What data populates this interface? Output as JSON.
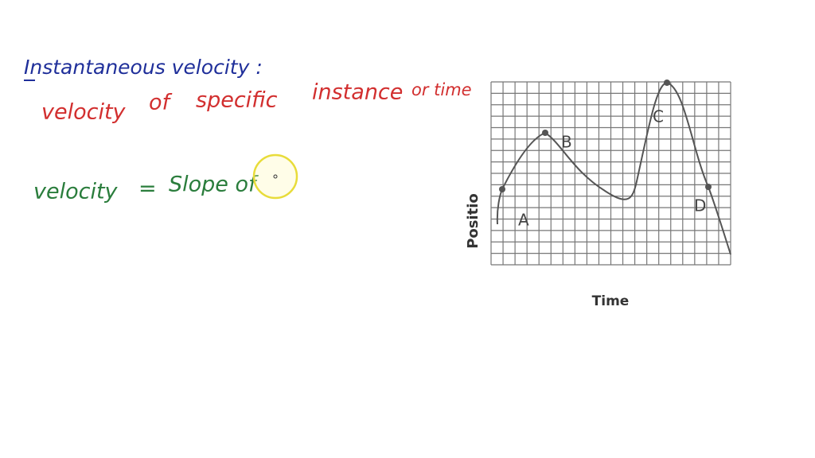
{
  "notes": {
    "heading": "Instantaneous velocity :",
    "definition_words": [
      "velocity",
      "of",
      "specific",
      "instance",
      "or time"
    ],
    "formula_lhs": "velocity",
    "formula_eq": "=",
    "formula_rhs": "Slope of"
  },
  "graph": {
    "point_labels": [
      "A",
      "B",
      "C",
      "D"
    ],
    "y_axis_label": "Positio",
    "x_axis_label": "Time"
  }
}
